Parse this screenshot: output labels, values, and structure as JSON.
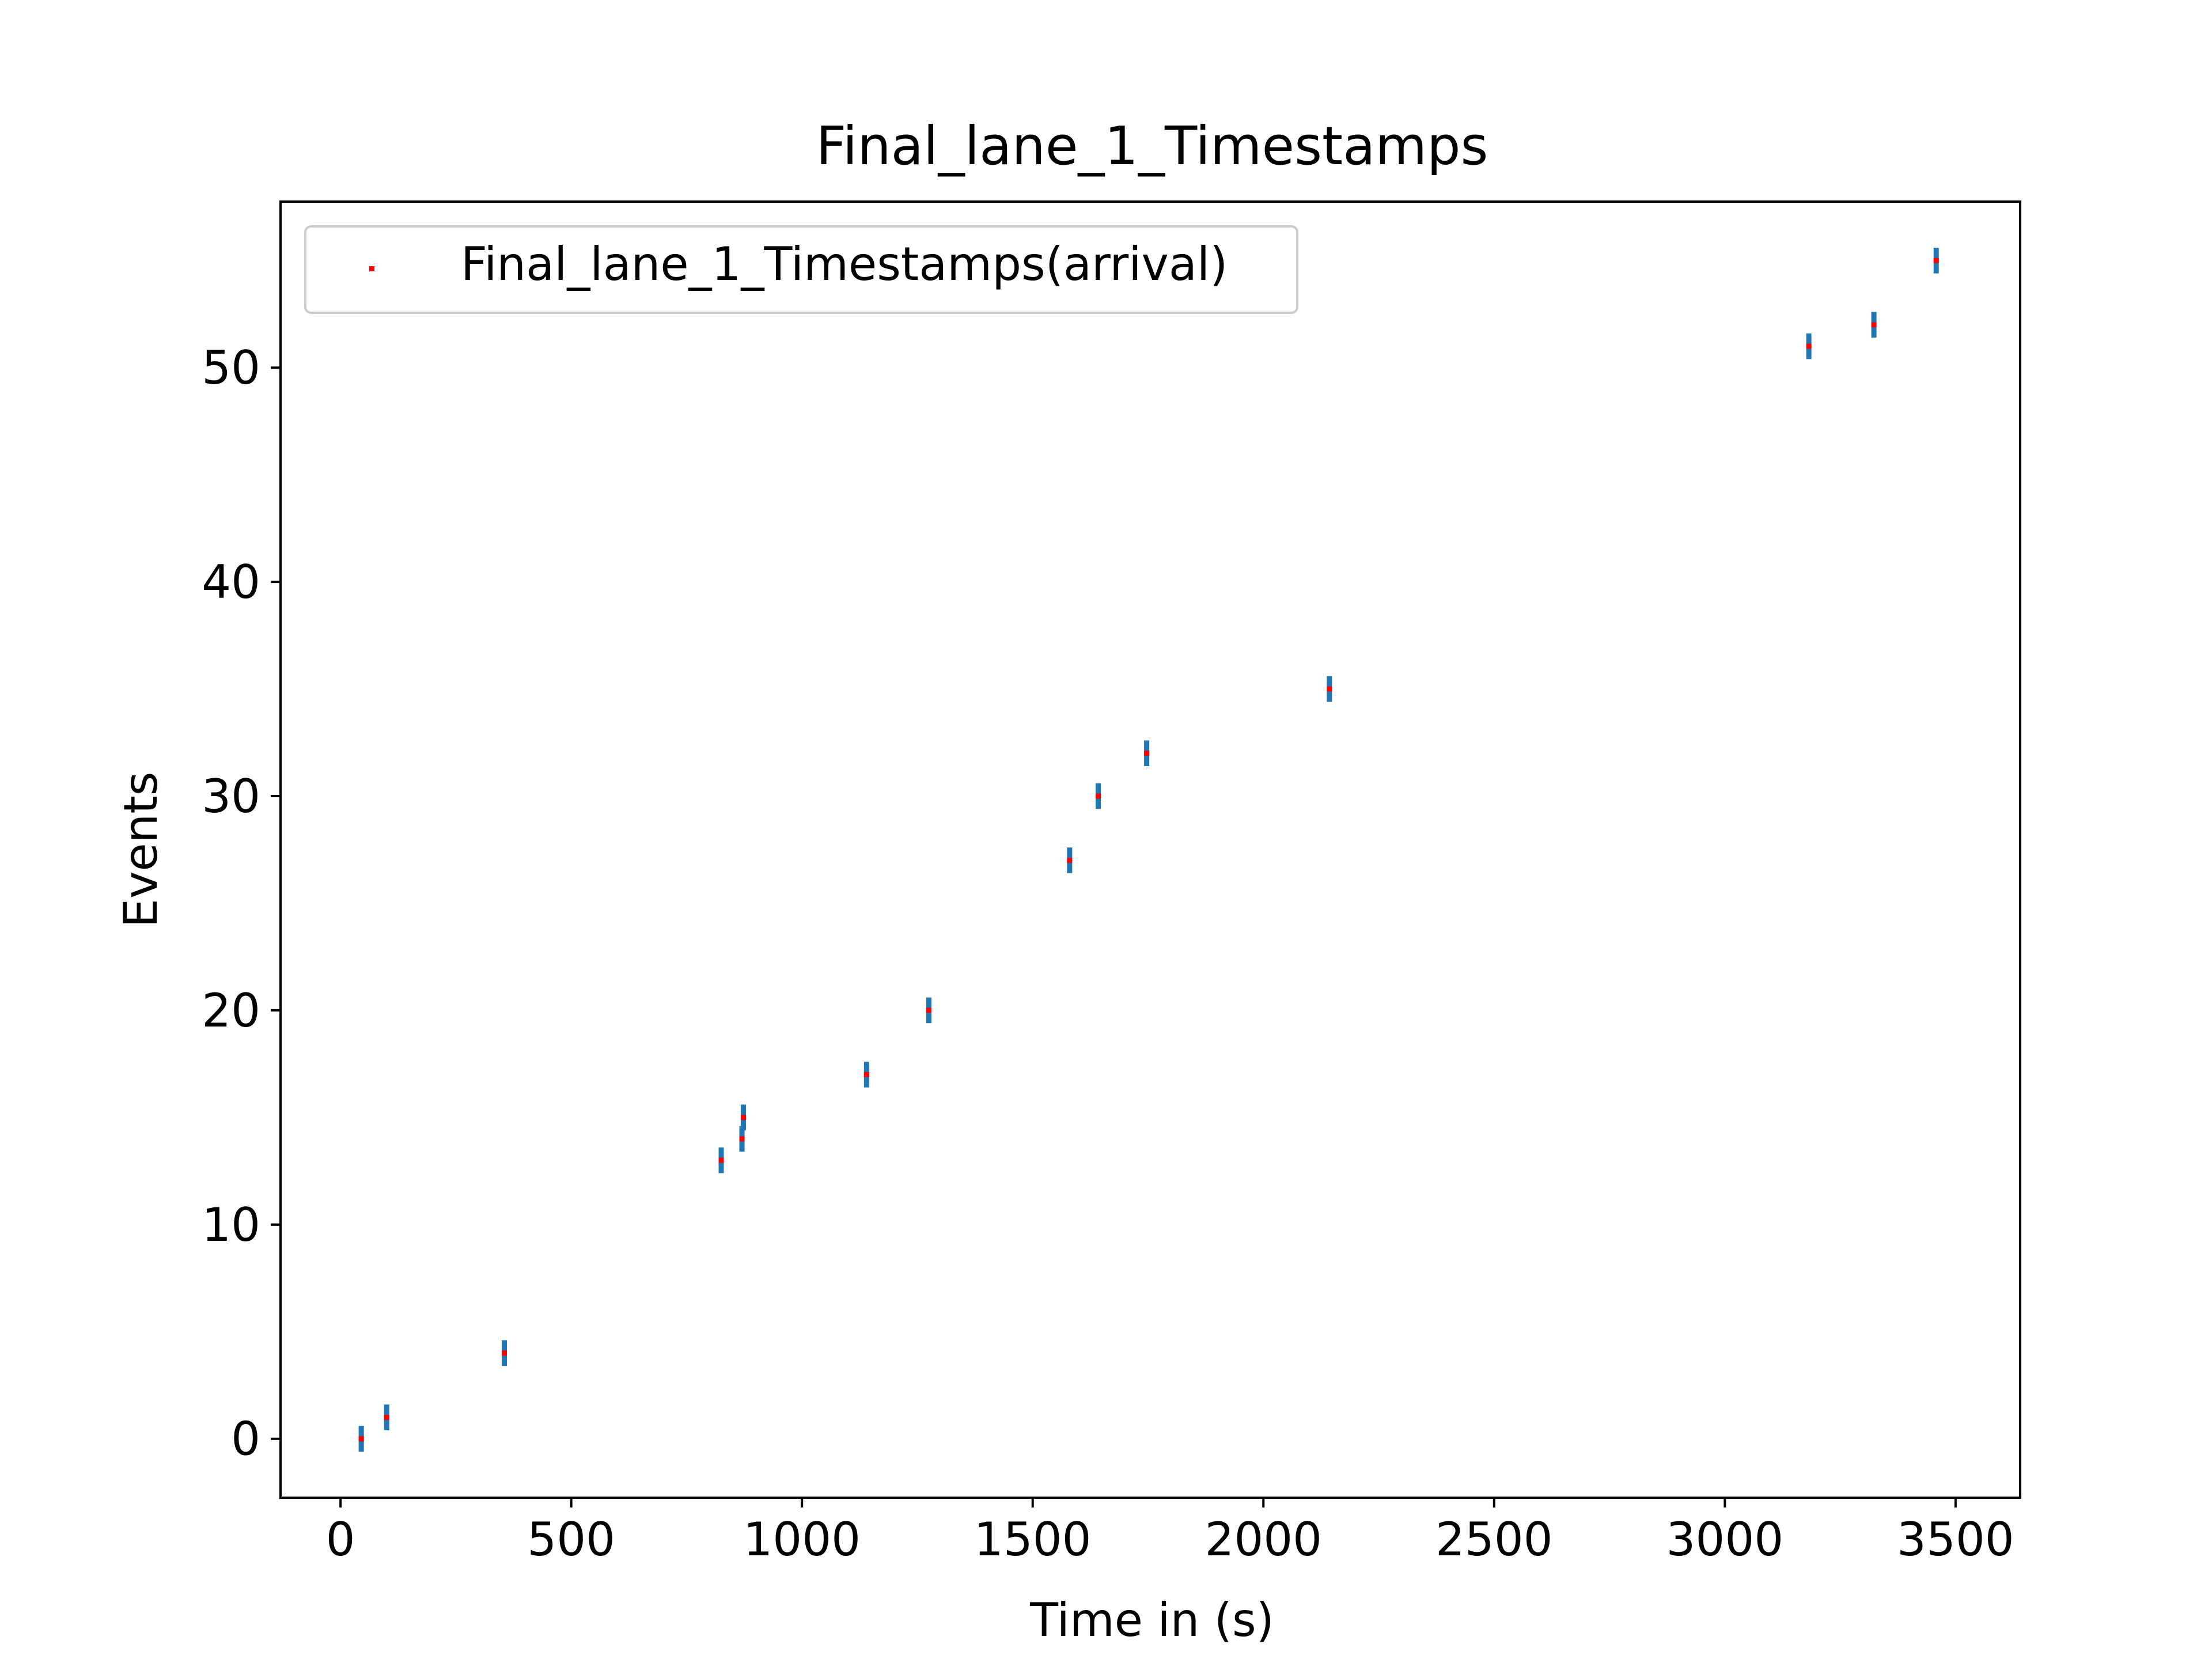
{
  "chart_data": {
    "type": "scatter",
    "title": "Final_lane_1_Timestamps",
    "xlabel": "Time in (s)",
    "ylabel": "Events",
    "xlim": [
      -130,
      3640
    ],
    "ylim": [
      -2.75,
      57.75
    ],
    "xticks": [
      0,
      500,
      1000,
      1500,
      2000,
      2500,
      3000,
      3500
    ],
    "yticks": [
      0,
      10,
      20,
      30,
      40,
      50
    ],
    "grid": false,
    "legend_position": "upper-left",
    "series": [
      {
        "name": "Final_lane_1_Timestamps(arrival)",
        "marker_color": "#ff0000",
        "errorbar_color": "#1f77b4",
        "points": [
          {
            "x": 45,
            "y": 0
          },
          {
            "x": 100,
            "y": 1
          },
          {
            "x": 355,
            "y": 4
          },
          {
            "x": 825,
            "y": 13
          },
          {
            "x": 870,
            "y": 14
          },
          {
            "x": 873,
            "y": 15
          },
          {
            "x": 1140,
            "y": 17
          },
          {
            "x": 1275,
            "y": 20
          },
          {
            "x": 1580,
            "y": 27
          },
          {
            "x": 1642,
            "y": 30
          },
          {
            "x": 1747,
            "y": 32
          },
          {
            "x": 2143,
            "y": 35
          },
          {
            "x": 3182,
            "y": 51
          },
          {
            "x": 3323,
            "y": 52
          },
          {
            "x": 3458,
            "y": 55
          }
        ]
      }
    ]
  }
}
